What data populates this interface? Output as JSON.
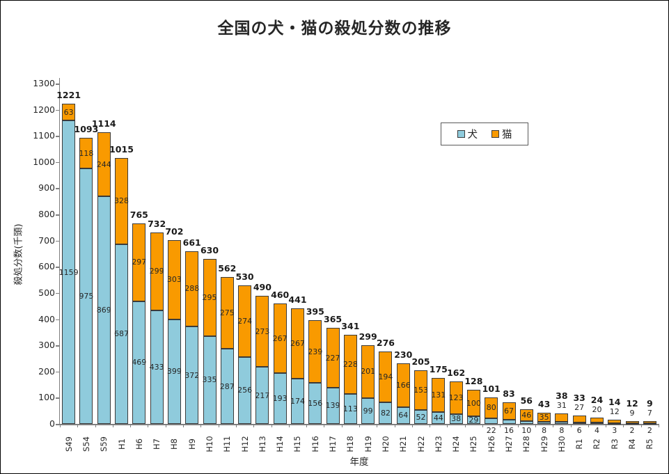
{
  "chart_data": {
    "type": "bar",
    "stacked": true,
    "title": "全国の犬・猫の殺処分数の推移",
    "xlabel": "年度",
    "ylabel": "殺処分数(千頭)",
    "ylim": [
      0,
      1300
    ],
    "ytick_step": 100,
    "grid": false,
    "legend_position": "inside-upper-right",
    "categories": [
      "S49",
      "S54",
      "S59",
      "H1",
      "H6",
      "H7",
      "H8",
      "H9",
      "H10",
      "H11",
      "H12",
      "H13",
      "H14",
      "H15",
      "H16",
      "H17",
      "H18",
      "H19",
      "H20",
      "H21",
      "H22",
      "H23",
      "H24",
      "H25",
      "H26",
      "H27",
      "H28",
      "H29",
      "H30",
      "R1",
      "R2",
      "R3",
      "R4",
      "R5"
    ],
    "series": [
      {
        "name": "犬",
        "color": "#8FCBDC",
        "values": [
          1159,
          975,
          869,
          687,
          469,
          433,
          399,
          372,
          335,
          287,
          256,
          217,
          193,
          174,
          156,
          139,
          113,
          99,
          82,
          64,
          52,
          44,
          38,
          29,
          22,
          16,
          10,
          8,
          8,
          6,
          4,
          3,
          2,
          2
        ]
      },
      {
        "name": "猫",
        "color": "#F99A00",
        "values": [
          63,
          118,
          244,
          328,
          297,
          299,
          303,
          288,
          295,
          275,
          274,
          273,
          267,
          267,
          239,
          227,
          228,
          201,
          194,
          166,
          153,
          131,
          123,
          100,
          80,
          67,
          46,
          35,
          31,
          27,
          20,
          12,
          9,
          7
        ]
      }
    ],
    "totals": [
      1221,
      1093,
      1114,
      1015,
      765,
      732,
      702,
      661,
      630,
      562,
      530,
      490,
      460,
      441,
      395,
      365,
      341,
      299,
      276,
      230,
      205,
      175,
      162,
      128,
      101,
      83,
      56,
      43,
      38,
      33,
      24,
      14,
      12,
      9
    ],
    "colors": {
      "dog_fill": "#8FCBDC",
      "cat_fill": "#F99A00",
      "bar_border": "#3A3A3A",
      "axis": "#7F7F7F",
      "text": "#262626",
      "background": "#FFFFFF"
    }
  }
}
